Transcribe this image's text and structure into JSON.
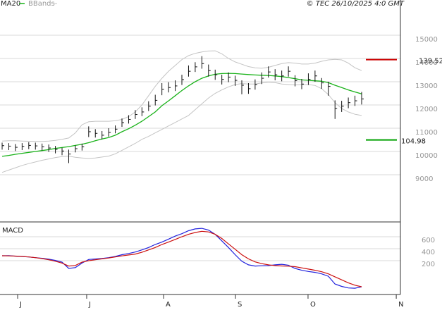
{
  "chart_data": [
    {
      "type": "ohlc",
      "copyright": "© TEC 26/10/2025 4:0 GMT",
      "x": [
        0,
        2,
        4,
        6,
        8,
        10,
        12,
        14,
        16,
        18,
        20,
        22,
        24,
        26,
        28,
        30,
        32,
        34,
        36,
        38,
        40,
        42,
        44,
        46,
        48,
        50,
        52,
        54,
        56,
        58,
        60,
        62,
        64,
        66,
        68,
        70,
        72,
        74,
        76,
        78,
        80,
        82,
        84,
        86,
        88,
        90,
        92,
        94,
        96,
        98,
        100,
        102,
        104,
        106,
        108
      ],
      "xlim": [
        -0.64,
        119.65
      ],
      "xticks": [
        {
          "value": 4.66,
          "label": "J"
        },
        {
          "value": 25.4,
          "label": "J"
        },
        {
          "value": 48.5,
          "label": "A"
        },
        {
          "value": 70.1,
          "label": "S"
        },
        {
          "value": 91.9,
          "label": "O"
        },
        {
          "value": 118.4,
          "label": "N"
        }
      ],
      "high": [
        103.8,
        103.6,
        103.2,
        103.6,
        104.0,
        103.8,
        103.4,
        103.0,
        102.4,
        101.6,
        100.8,
        102.6,
        103.4,
        110.8,
        109.6,
        108.8,
        110.0,
        111.2,
        114.2,
        115.6,
        117.8,
        119.0,
        121.6,
        124.4,
        129.4,
        129.8,
        130.6,
        133.0,
        137.0,
        138.4,
        141.0,
        137.4,
        135.2,
        133.0,
        134.0,
        132.6,
        130.6,
        129.4,
        131.0,
        134.0,
        136.6,
        135.4,
        134.8,
        136.6,
        132.8,
        131.2,
        133.6,
        134.8,
        131.6,
        130.0,
        122.0,
        121.8,
        123.2,
        124.0,
        125.6
      ],
      "low": [
        100.8,
        100.6,
        100.2,
        100.6,
        101.0,
        100.8,
        100.4,
        99.8,
        99.2,
        98.4,
        95.0,
        99.6,
        100.4,
        106.2,
        106.0,
        105.2,
        106.4,
        107.8,
        110.6,
        112.0,
        114.0,
        115.2,
        117.4,
        119.8,
        124.2,
        125.4,
        126.0,
        128.6,
        132.2,
        134.2,
        135.6,
        132.2,
        130.8,
        128.8,
        129.8,
        128.2,
        124.6,
        124.8,
        126.6,
        129.0,
        131.8,
        130.6,
        130.2,
        132.2,
        128.0,
        126.8,
        128.6,
        130.0,
        127.0,
        124.0,
        114.0,
        117.0,
        118.6,
        119.6,
        120.2
      ],
      "close": [
        102.5,
        102.3,
        101.8,
        102.2,
        102.6,
        102.4,
        102.0,
        101.5,
        100.9,
        100.2,
        98.9,
        101.2,
        102.0,
        108.5,
        107.8,
        107.0,
        108.2,
        109.6,
        112.4,
        113.8,
        115.9,
        117.0,
        119.5,
        122.0,
        126.8,
        127.5,
        128.2,
        130.9,
        134.5,
        136.4,
        137.8,
        134.8,
        133.0,
        131.0,
        132.0,
        130.6,
        128.5,
        127.0,
        128.8,
        131.5,
        134.2,
        133.0,
        132.5,
        134.5,
        130.5,
        129.0,
        131.0,
        132.5,
        129.5,
        128.0,
        118.5,
        119.5,
        121.0,
        121.8,
        122.6
      ],
      "bar_color": "#111111",
      "ma": {
        "name": "MA20",
        "color": "#19b219",
        "values": [
          97.9,
          98.3,
          98.8,
          99.2,
          99.6,
          100.0,
          100.4,
          100.8,
          101.3,
          101.7,
          102.1,
          102.6,
          103.1,
          103.8,
          104.6,
          105.4,
          106.0,
          107.0,
          108.5,
          109.8,
          111.3,
          113.0,
          115.0,
          117.0,
          119.7,
          121.8,
          124.0,
          126.2,
          128.2,
          130.0,
          131.5,
          132.5,
          133.2,
          133.5,
          133.6,
          133.5,
          133.3,
          133.1,
          132.9,
          132.8,
          132.7,
          132.5,
          132.2,
          131.8,
          131.3,
          130.8,
          130.6,
          130.4,
          130.2,
          129.6,
          128.5,
          127.5,
          126.5,
          125.6,
          124.8
        ]
      },
      "bands": {
        "name": "BBands",
        "color": "#c4c4c4",
        "upper": [
          104.5,
          104.6,
          104.6,
          104.5,
          104.4,
          104.3,
          104.3,
          104.5,
          104.8,
          105.2,
          105.8,
          108.0,
          111.5,
          112.8,
          113.0,
          113.0,
          113.0,
          113.2,
          113.8,
          115.0,
          117.0,
          120.0,
          124.0,
          128.0,
          131.5,
          134.5,
          137.0,
          139.5,
          141.2,
          142.2,
          142.8,
          143.2,
          143.3,
          142.0,
          140.0,
          138.5,
          137.5,
          136.5,
          136.0,
          135.8,
          136.2,
          137.0,
          137.8,
          138.2,
          138.0,
          137.6,
          137.6,
          138.0,
          138.8,
          139.4,
          139.6,
          139.4,
          138.0,
          136.0,
          134.8
        ],
        "lower": [
          91.0,
          92.0,
          93.0,
          94.0,
          94.8,
          95.5,
          96.2,
          96.8,
          97.4,
          97.8,
          98.0,
          97.5,
          97.2,
          97.0,
          97.2,
          97.6,
          98.0,
          99.0,
          100.5,
          102.0,
          103.5,
          105.2,
          106.5,
          108.0,
          109.5,
          111.0,
          112.5,
          114.0,
          115.5,
          118.0,
          120.5,
          123.0,
          125.0,
          126.5,
          127.8,
          128.8,
          129.2,
          129.0,
          129.0,
          129.5,
          129.8,
          129.6,
          129.0,
          128.8,
          128.6,
          128.8,
          128.8,
          128.4,
          127.0,
          124.5,
          121.0,
          118.5,
          117.0,
          116.0,
          115.5
        ]
      },
      "levels": [
        {
          "value": 139.52,
          "color": "#cc0000",
          "label_color": "#990000"
        },
        {
          "value": 104.98,
          "color": "#00a000",
          "label_color": "#222222"
        }
      ],
      "ylim": [
        69.7,
        165.15
      ],
      "yticks": [
        {
          "value": 150,
          "label": "15000"
        },
        {
          "value": 140,
          "label": "14000"
        },
        {
          "value": 130,
          "label": "13000"
        },
        {
          "value": 120,
          "label": "12000"
        },
        {
          "value": 110,
          "label": "11000"
        },
        {
          "value": 100,
          "label": "10000"
        },
        {
          "value": 90,
          "label": "9000"
        }
      ],
      "grid": true
    },
    {
      "type": "line",
      "title": "MACD",
      "series": [
        {
          "color": "#2222dd",
          "values": [
            282,
            285,
            275,
            268,
            262,
            250,
            240,
            225,
            205,
            175,
            70,
            85,
            160,
            220,
            228,
            236,
            250,
            270,
            300,
            320,
            345,
            380,
            420,
            470,
            510,
            560,
            610,
            650,
            700,
            730,
            740,
            710,
            640,
            530,
            420,
            300,
            190,
            130,
            110,
            115,
            118,
            130,
            140,
            125,
            70,
            40,
            20,
            5,
            -20,
            -60,
            -190,
            -230,
            -255,
            -260,
            -235
          ]
        },
        {
          "color": "#cc1111",
          "values": [
            282,
            280,
            276,
            270,
            262,
            250,
            235,
            215,
            190,
            160,
            110,
            120,
            175,
            200,
            215,
            230,
            245,
            262,
            280,
            295,
            310,
            340,
            380,
            420,
            470,
            510,
            555,
            600,
            640,
            670,
            690,
            680,
            640,
            570,
            480,
            390,
            300,
            230,
            180,
            150,
            130,
            118,
            112,
            108,
            100,
            80,
            60,
            40,
            15,
            -20,
            -70,
            -120,
            -170,
            -210,
            -235
          ]
        }
      ],
      "ylim": [
        -365,
        847
      ],
      "yticks": [
        200,
        400,
        600
      ],
      "grid": true
    }
  ]
}
